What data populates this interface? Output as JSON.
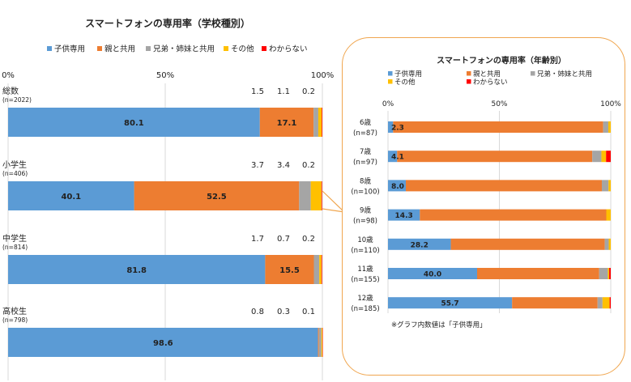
{
  "colors": {
    "child": "#5b9bd5",
    "parent": "#ed7d31",
    "sibling": "#a5a5a5",
    "other": "#ffc000",
    "unknown": "#ff0000",
    "panel_border": "#f0a64f"
  },
  "chart_data": [
    {
      "type": "bar",
      "orientation": "horizontal",
      "stacked": true,
      "title": "スマートフォンの専用率（学校種別）",
      "legend": [
        "子供専用",
        "親と共用",
        "兄弟・姉妹と共用",
        "その他",
        "わからない"
      ],
      "legend_position": "top",
      "xlim": [
        0,
        100
      ],
      "x_ticks": [
        "0%",
        "50%",
        "100%"
      ],
      "categories": [
        {
          "label": "総数",
          "n": "(n=2022)"
        },
        {
          "label": "小学生",
          "n": "(n=406)"
        },
        {
          "label": "中学生",
          "n": "(n=814)"
        },
        {
          "label": "高校生",
          "n": "(n=798)"
        }
      ],
      "series": [
        {
          "name": "子供専用",
          "values": [
            80.1,
            40.1,
            81.8,
            98.6
          ]
        },
        {
          "name": "親と共用",
          "values": [
            17.1,
            52.5,
            15.5,
            0.3
          ]
        },
        {
          "name": "兄弟・姉妹と共用",
          "values": [
            1.5,
            3.7,
            1.7,
            0.8
          ]
        },
        {
          "name": "その他",
          "values": [
            1.1,
            3.4,
            0.7,
            0.3
          ]
        },
        {
          "name": "わからない",
          "values": [
            0.2,
            0.2,
            0.2,
            0.1
          ]
        }
      ],
      "data_labels": {
        "inside": [
          [
            "80.1",
            "17.1"
          ],
          [
            "40.1",
            "52.5"
          ],
          [
            "81.8",
            "15.5"
          ],
          [
            "98.6",
            ""
          ]
        ],
        "above": [
          [
            "1.5",
            "1.1",
            "0.2"
          ],
          [
            "3.7",
            "3.4",
            "0.2"
          ],
          [
            "1.7",
            "0.7",
            "0.2"
          ],
          [
            "0.8",
            "0.3",
            "0.1"
          ]
        ]
      }
    },
    {
      "type": "bar",
      "orientation": "horizontal",
      "stacked": true,
      "title": "スマートフォンの専用率（年齢別）",
      "legend": [
        "子供専用",
        "親と共用",
        "兄弟・姉妹と共用",
        "その他",
        "わからない"
      ],
      "legend_position": "top",
      "xlim": [
        0,
        100
      ],
      "x_ticks": [
        "0%",
        "50%",
        "100%"
      ],
      "categories": [
        {
          "label": "6歳",
          "n": "(n=87)"
        },
        {
          "label": "7歳",
          "n": "(n=97)"
        },
        {
          "label": "8歳",
          "n": "(n=100)"
        },
        {
          "label": "9歳",
          "n": "(n=98)"
        },
        {
          "label": "10歳",
          "n": "(n=110)"
        },
        {
          "label": "11歳",
          "n": "(n=155)"
        },
        {
          "label": "12歳",
          "n": "(n=185)"
        }
      ],
      "series": [
        {
          "name": "子供専用",
          "values": [
            2.3,
            4.1,
            8.0,
            14.3,
            28.2,
            40.0,
            55.7
          ]
        },
        {
          "name": "親と共用",
          "values": [
            94.3,
            87.6,
            88.0,
            83.7,
            69.1,
            54.8,
            38.4
          ]
        },
        {
          "name": "兄弟・姉妹と共用",
          "values": [
            2.3,
            4.1,
            3.0,
            0.0,
            1.8,
            3.9,
            2.2
          ]
        },
        {
          "name": "その他",
          "values": [
            1.1,
            2.1,
            1.0,
            2.0,
            0.9,
            0.6,
            3.2
          ]
        },
        {
          "name": "わからない",
          "values": [
            0.0,
            2.1,
            0.0,
            0.0,
            0.0,
            0.7,
            0.5
          ]
        }
      ],
      "data_labels": {
        "inside": [
          "2.3",
          "4.1",
          "8.0",
          "14.3",
          "28.2",
          "40.0",
          "55.7"
        ]
      },
      "footnote": "※グラフ内数値は「子供専用」"
    }
  ]
}
